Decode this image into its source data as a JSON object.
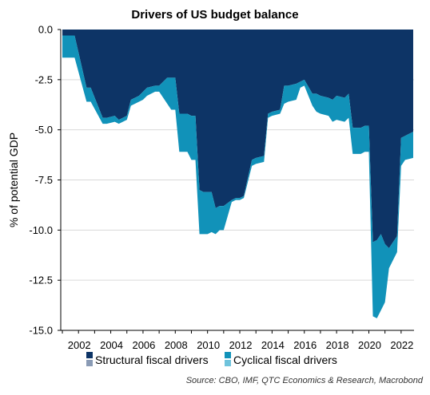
{
  "chart_data": {
    "type": "area",
    "stacked": true,
    "title": "Drivers of US budget balance",
    "ylabel": "% of potential GDP",
    "xlabel": "",
    "ylim": [
      -15,
      0
    ],
    "xlim": [
      2000.9,
      2022.8
    ],
    "yticks": [
      0,
      -2.5,
      -5,
      -7.5,
      -10,
      -12.5,
      -15
    ],
    "ytick_labels": [
      "0.0",
      "-2.5",
      "-5.0",
      "-7.5",
      "-10.0",
      "-12.5",
      "-15.0"
    ],
    "xticks": [
      2002,
      2004,
      2006,
      2008,
      2010,
      2012,
      2014,
      2016,
      2018,
      2020,
      2022
    ],
    "xtick_labels": [
      "2002",
      "2004",
      "2006",
      "2008",
      "2010",
      "2012",
      "2014",
      "2016",
      "2018",
      "2020",
      "2022"
    ],
    "x": [
      2001.0,
      2001.75,
      2001.76,
      2002.5,
      2002.75,
      2002.76,
      2003.5,
      2003.75,
      2004.25,
      2004.5,
      2004.75,
      2005.0,
      2005.25,
      2005.75,
      2006.0,
      2006.25,
      2006.75,
      2007.0,
      2007.5,
      2007.75,
      2008.0,
      2008.25,
      2008.75,
      2009.0,
      2009.25,
      2009.5,
      2009.75,
      2010.0,
      2010.25,
      2010.5,
      2010.75,
      2011.0,
      2011.5,
      2011.75,
      2012.0,
      2012.25,
      2012.75,
      2013.0,
      2013.5,
      2013.75,
      2014.0,
      2014.5,
      2014.75,
      2015.0,
      2015.5,
      2015.75,
      2016.0,
      2016.5,
      2016.75,
      2017.0,
      2017.5,
      2017.75,
      2018.0,
      2018.5,
      2018.75,
      2019.0,
      2019.5,
      2019.75,
      2020.0,
      2020.25,
      2020.5,
      2020.75,
      2021.0,
      2021.25,
      2021.5,
      2021.75,
      2022.0,
      2022.25,
      2022.75
    ],
    "series": [
      {
        "name": "Structural fiscal drivers",
        "color": "#0d3466",
        "values": [
          -0.3,
          -0.3,
          -0.3,
          -2.9,
          -2.9,
          -2.9,
          -4.4,
          -4.4,
          -4.3,
          -4.5,
          -4.4,
          -4.3,
          -3.5,
          -3.3,
          -3.1,
          -2.9,
          -2.8,
          -2.8,
          -2.4,
          -2.4,
          -2.4,
          -4.2,
          -4.2,
          -4.3,
          -4.3,
          -8.0,
          -8.1,
          -8.1,
          -8.1,
          -8.9,
          -8.8,
          -8.8,
          -8.5,
          -8.4,
          -8.4,
          -8.3,
          -6.5,
          -6.4,
          -6.3,
          -4.2,
          -4.1,
          -4.0,
          -2.8,
          -2.8,
          -2.7,
          -2.6,
          -2.5,
          -3.2,
          -3.2,
          -3.3,
          -3.4,
          -3.5,
          -3.3,
          -3.4,
          -3.2,
          -4.9,
          -4.9,
          -4.8,
          -4.8,
          -10.6,
          -10.5,
          -10.2,
          -10.7,
          -10.9,
          -10.6,
          -10.3,
          -5.4,
          -5.3,
          -5.1
        ]
      },
      {
        "name": "Cyclical fiscal drivers",
        "color": "#1192b9",
        "values": [
          -1.1,
          -1.1,
          -1.1,
          -0.7,
          -0.7,
          -0.7,
          -0.3,
          -0.3,
          -0.3,
          -0.2,
          -0.2,
          -0.2,
          -0.3,
          -0.3,
          -0.4,
          -0.4,
          -0.3,
          -0.3,
          -1.3,
          -1.6,
          -1.6,
          -1.9,
          -1.9,
          -2.2,
          -2.2,
          -2.2,
          -2.1,
          -2.1,
          -2.0,
          -1.3,
          -1.2,
          -1.2,
          -0.1,
          -0.1,
          -0.1,
          -0.1,
          -0.3,
          -0.3,
          -0.3,
          -0.2,
          -0.2,
          -0.2,
          -0.9,
          -0.8,
          -0.8,
          -0.3,
          -0.3,
          -0.6,
          -0.9,
          -0.9,
          -0.9,
          -1.1,
          -1.2,
          -1.2,
          -1.2,
          -1.3,
          -1.3,
          -1.3,
          -1.3,
          -3.7,
          -3.9,
          -3.8,
          -2.9,
          -1.0,
          -0.9,
          -0.8,
          -1.4,
          -1.2,
          -1.3
        ]
      }
    ],
    "grid": true,
    "legend": {
      "placement": "bottom-left",
      "entries": [
        "Structural fiscal drivers",
        "Cyclical fiscal drivers"
      ]
    }
  },
  "source": "Source: CBO, IMF, QTC Economics & Research, Macrobond"
}
